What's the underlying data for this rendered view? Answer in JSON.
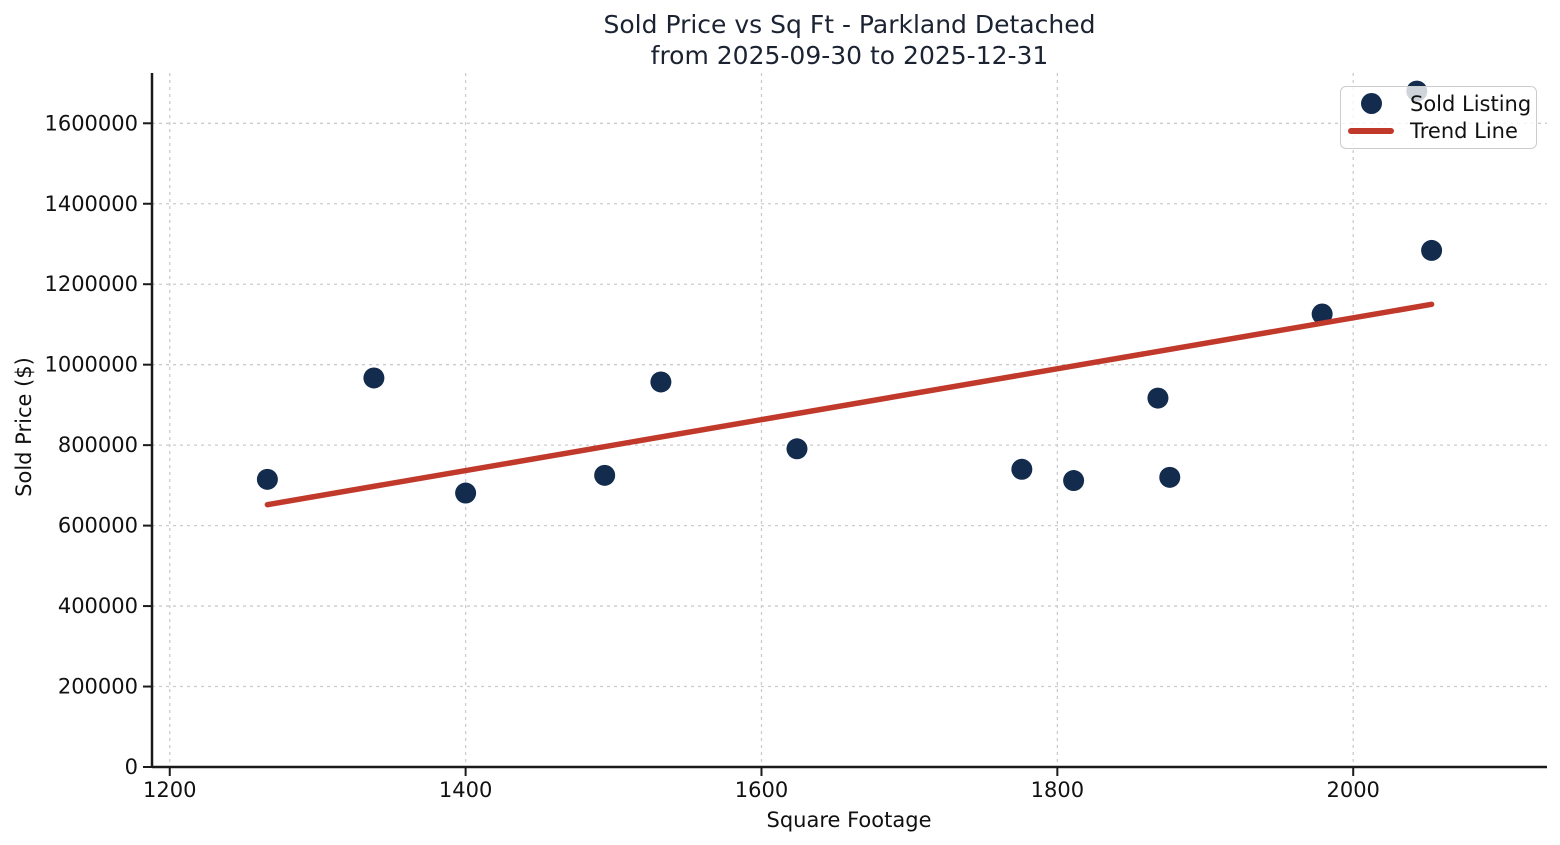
{
  "figure": {
    "title": "Sold Price vs Sq Ft - Parkland Detached",
    "subtitle": "from 2025-09-30 to 2025-12-31"
  },
  "chart_data": {
    "type": "scatter",
    "title": "Sold Price vs Sq Ft - Parkland Detached",
    "subtitle": "from 2025-09-30 to 2025-12-31",
    "xlabel": "Square Footage",
    "ylabel": "Sold Price ($)",
    "xlim": [
      1188,
      2131
    ],
    "ylim": [
      0,
      1725000
    ],
    "xticks": [
      1200,
      1400,
      1600,
      1800,
      2000
    ],
    "yticks": [
      0,
      200000,
      400000,
      600000,
      800000,
      1000000,
      1200000,
      1400000,
      1600000
    ],
    "grid": true,
    "grid_style": "dashed",
    "legend_position": "upper right",
    "series": [
      {
        "name": "Sold Listing",
        "type": "scatter",
        "color": "#132b4c",
        "points": [
          [
            1266,
            715000
          ],
          [
            1338,
            967000
          ],
          [
            1400,
            681000
          ],
          [
            1494,
            725000
          ],
          [
            1532,
            957000
          ],
          [
            1624,
            791000
          ],
          [
            1776,
            740000
          ],
          [
            1811,
            712000
          ],
          [
            1868,
            917000
          ],
          [
            1876,
            720000
          ],
          [
            1979,
            1126000
          ],
          [
            2043,
            1680000
          ],
          [
            2053,
            1284000
          ]
        ]
      },
      {
        "name": "Trend Line",
        "type": "line",
        "color": "#c0392b",
        "points": [
          [
            1266,
            652000
          ],
          [
            2053,
            1150000
          ]
        ]
      }
    ]
  },
  "legend": {
    "items": [
      {
        "label": "Sold Listing",
        "marker": "dot"
      },
      {
        "label": "Trend Line",
        "marker": "line"
      }
    ]
  },
  "colors": {
    "scatter": "#132b4c",
    "trend": "#c0392b",
    "grid": "#cccccc",
    "spine": "#1a1a1a",
    "text": "#111111",
    "title": "#1b2332",
    "legend_bg": "rgba(255,255,255,0.8)",
    "legend_border": "#cccccc"
  }
}
